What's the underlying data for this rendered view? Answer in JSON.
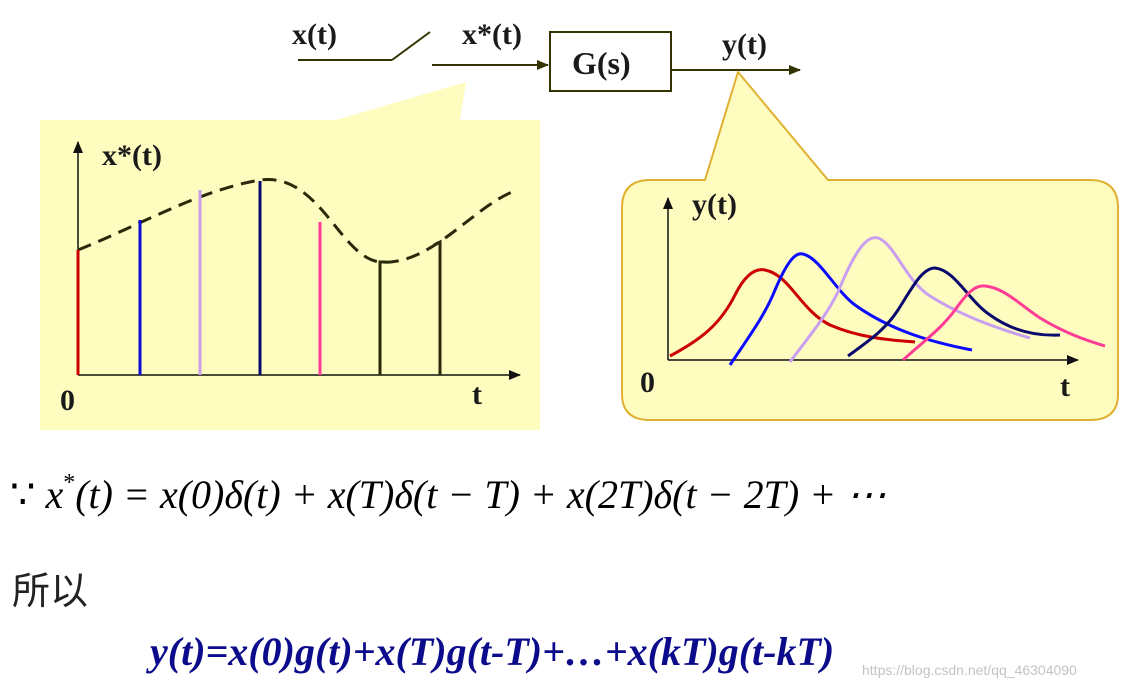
{
  "block_diagram": {
    "input_label": "x(t)",
    "sampled_label": "x*(t)",
    "block_label": "G(s)",
    "output_label": "y(t)"
  },
  "left_panel": {
    "y_label": "x*(t)",
    "origin_label": "0",
    "x_label": "t",
    "fill_color": "#fffcc0",
    "impulse_colors": [
      "#cc0000",
      "#0b0bd6",
      "#c9a0f0",
      "#0a0a6e",
      "#ff3d96",
      "#2a2a0a",
      "#2a2a0a"
    ]
  },
  "right_panel": {
    "y_label": "y(t)",
    "origin_label": "0",
    "x_label": "t",
    "fill_color": "#fffcc0",
    "border_color": "#e0b030",
    "response_colors": [
      "#cc0000",
      "#0b0bff",
      "#c9a0f0",
      "#0a0a6e",
      "#ff3d96"
    ]
  },
  "equation": {
    "because": "∵",
    "x": "x",
    "star": "*",
    "rest": "(t) = x(0)δ(t) + x(T)δ(t − T) + x(2T)δ(t − 2T) + ⋯"
  },
  "so_text": "所以",
  "result_text": "y(t)=x(0)g(t)+x(T)g(t-T)+…+x(kT)g(t-kT)",
  "watermark": "https://blog.csdn.net/qq_46304090"
}
